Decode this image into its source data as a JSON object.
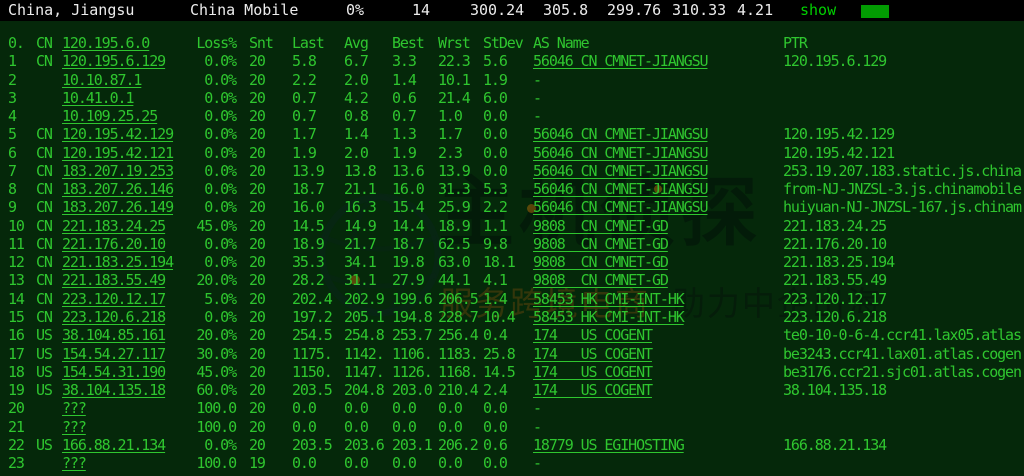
{
  "topbar": {
    "location": "China, Jiangsu",
    "isp": "China Mobile",
    "loss_pct": "0%",
    "hop_count": "14",
    "stats": [
      "300.24",
      "305.8",
      "299.76",
      "310.33",
      "4.21"
    ],
    "show_label": "show",
    "progress_color": "#029b02",
    "bar_bg": "#000000",
    "text_color": "#ececec",
    "show_color": "#00d000"
  },
  "terminal": {
    "bg_color": "#05280a",
    "text_color": "#2fc62f",
    "rows": [
      {
        "hop": "0.",
        "cc": "CN",
        "ip": "120.195.6.0",
        "loss": "Loss%",
        "snt": "Snt",
        "last": "Last",
        "avg": "Avg",
        "best": "Best",
        "wrst": "Wrst",
        "stdev": "StDev",
        "as_name": "AS Name",
        "ptr": "PTR",
        "header": true
      },
      {
        "hop": "1",
        "cc": "CN",
        "ip": "120.195.6.129",
        "loss": "0.0%",
        "snt": "20",
        "last": "5.8",
        "avg": "6.7",
        "best": "3.3",
        "wrst": "22.3",
        "stdev": "5.6",
        "as_name": "56046 CN CMNET-JIANGSU",
        "ptr": "120.195.6.129"
      },
      {
        "hop": "2",
        "cc": "",
        "ip": "10.10.87.1",
        "loss": "0.0%",
        "snt": "20",
        "last": "2.2",
        "avg": "2.0",
        "best": "1.4",
        "wrst": "10.1",
        "stdev": "1.9",
        "as_name": "-",
        "ptr": ""
      },
      {
        "hop": "3",
        "cc": "",
        "ip": "10.41.0.1",
        "loss": "0.0%",
        "snt": "20",
        "last": "0.7",
        "avg": "4.2",
        "best": "0.6",
        "wrst": "21.4",
        "stdev": "6.0",
        "as_name": "-",
        "ptr": ""
      },
      {
        "hop": "4",
        "cc": "",
        "ip": "10.109.25.25",
        "loss": "0.0%",
        "snt": "20",
        "last": "0.7",
        "avg": "0.8",
        "best": "0.7",
        "wrst": "1.0",
        "stdev": "0.0",
        "as_name": "-",
        "ptr": ""
      },
      {
        "hop": "5",
        "cc": "CN",
        "ip": "120.195.42.129",
        "loss": "0.0%",
        "snt": "20",
        "last": "1.7",
        "avg": "1.4",
        "best": "1.3",
        "wrst": "1.7",
        "stdev": "0.0",
        "as_name": "56046 CN CMNET-JIANGSU",
        "ptr": "120.195.42.129"
      },
      {
        "hop": "6",
        "cc": "CN",
        "ip": "120.195.42.121",
        "loss": "0.0%",
        "snt": "20",
        "last": "1.9",
        "avg": "2.0",
        "best": "1.9",
        "wrst": "2.3",
        "stdev": "0.0",
        "as_name": "56046 CN CMNET-JIANGSU",
        "ptr": "120.195.42.121"
      },
      {
        "hop": "7",
        "cc": "CN",
        "ip": "183.207.19.253",
        "loss": "0.0%",
        "snt": "20",
        "last": "13.9",
        "avg": "13.8",
        "best": "13.6",
        "wrst": "13.9",
        "stdev": "0.0",
        "as_name": "56046 CN CMNET-JIANGSU",
        "ptr": "253.19.207.183.static.js.china"
      },
      {
        "hop": "8",
        "cc": "CN",
        "ip": "183.207.26.146",
        "loss": "0.0%",
        "snt": "20",
        "last": "18.7",
        "avg": "21.1",
        "best": "16.0",
        "wrst": "31.3",
        "stdev": "5.3",
        "as_name": "56046 CN CMNET-JIANGSU",
        "ptr": "from-NJ-JNZSL-3.js.chinamobile"
      },
      {
        "hop": "9",
        "cc": "CN",
        "ip": "183.207.26.149",
        "loss": "0.0%",
        "snt": "20",
        "last": "16.0",
        "avg": "16.3",
        "best": "15.4",
        "wrst": "25.9",
        "stdev": "2.2",
        "as_name": "56046 CN CMNET-JIANGSU",
        "ptr": "huiyuan-NJ-JNZSL-167.js.chinam"
      },
      {
        "hop": "10",
        "cc": "CN",
        "ip": "221.183.24.25",
        "loss": "45.0%",
        "snt": "20",
        "last": "14.5",
        "avg": "14.9",
        "best": "14.4",
        "wrst": "18.9",
        "stdev": "1.1",
        "as_name": "9808  CN CMNET-GD",
        "ptr": "221.183.24.25"
      },
      {
        "hop": "11",
        "cc": "CN",
        "ip": "221.176.20.10",
        "loss": "0.0%",
        "snt": "20",
        "last": "18.9",
        "avg": "21.7",
        "best": "18.7",
        "wrst": "62.5",
        "stdev": "9.8",
        "as_name": "9808  CN CMNET-GD",
        "ptr": "221.176.20.10"
      },
      {
        "hop": "12",
        "cc": "CN",
        "ip": "221.183.25.194",
        "loss": "0.0%",
        "snt": "20",
        "last": "35.3",
        "avg": "34.1",
        "best": "19.8",
        "wrst": "63.0",
        "stdev": "18.1",
        "as_name": "9808  CN CMNET-GD",
        "ptr": "221.183.25.194"
      },
      {
        "hop": "13",
        "cc": "CN",
        "ip": "221.183.55.49",
        "loss": "20.0%",
        "snt": "20",
        "last": "28.2",
        "avg": "31.1",
        "best": "27.9",
        "wrst": "44.1",
        "stdev": "4.1",
        "as_name": "9808  CN CMNET-GD",
        "ptr": "221.183.55.49"
      },
      {
        "hop": "14",
        "cc": "CN",
        "ip": "223.120.12.17",
        "loss": "5.0%",
        "snt": "20",
        "last": "202.4",
        "avg": "202.9",
        "best": "199.6",
        "wrst": "206.5",
        "stdev": "1.4",
        "as_name": "58453 HK CMI-INT-HK",
        "ptr": "223.120.12.17"
      },
      {
        "hop": "15",
        "cc": "CN",
        "ip": "223.120.6.218",
        "loss": "0.0%",
        "snt": "20",
        "last": "197.2",
        "avg": "205.1",
        "best": "194.8",
        "wrst": "228.7",
        "stdev": "10.4",
        "as_name": "58453 HK CMI-INT-HK",
        "ptr": "223.120.6.218"
      },
      {
        "hop": "16",
        "cc": "US",
        "ip": "38.104.85.161",
        "loss": "20.0%",
        "snt": "20",
        "last": "254.5",
        "avg": "254.8",
        "best": "253.7",
        "wrst": "256.4",
        "stdev": "0.4",
        "as_name": "174   US COGENT",
        "ptr": "te0-10-0-6-4.ccr41.lax05.atlas"
      },
      {
        "hop": "17",
        "cc": "US",
        "ip": "154.54.27.117",
        "loss": "30.0%",
        "snt": "20",
        "last": "1175.",
        "avg": "1142.",
        "best": "1106.",
        "wrst": "1183.",
        "stdev": "25.8",
        "as_name": "174   US COGENT",
        "ptr": "be3243.ccr41.lax01.atlas.cogen"
      },
      {
        "hop": "18",
        "cc": "US",
        "ip": "154.54.31.190",
        "loss": "45.0%",
        "snt": "20",
        "last": "1150.",
        "avg": "1147.",
        "best": "1126.",
        "wrst": "1168.",
        "stdev": "14.5",
        "as_name": "174   US COGENT",
        "ptr": "be3176.ccr21.sjc01.atlas.cogen"
      },
      {
        "hop": "19",
        "cc": "US",
        "ip": "38.104.135.18",
        "loss": "60.0%",
        "snt": "20",
        "last": "203.5",
        "avg": "204.8",
        "best": "203.0",
        "wrst": "210.4",
        "stdev": "2.4",
        "as_name": "174   US COGENT",
        "ptr": "38.104.135.18"
      },
      {
        "hop": "20",
        "cc": "",
        "ip": "???",
        "loss": "100.0",
        "snt": "20",
        "last": "0.0",
        "avg": "0.0",
        "best": "0.0",
        "wrst": "0.0",
        "stdev": "0.0",
        "as_name": "-",
        "ptr": ""
      },
      {
        "hop": "21",
        "cc": "",
        "ip": "???",
        "loss": "100.0",
        "snt": "20",
        "last": "0.0",
        "avg": "0.0",
        "best": "0.0",
        "wrst": "0.0",
        "stdev": "0.0",
        "as_name": "-",
        "ptr": ""
      },
      {
        "hop": "22",
        "cc": "US",
        "ip": "166.88.21.134",
        "loss": "0.0%",
        "snt": "20",
        "last": "203.5",
        "avg": "203.6",
        "best": "203.1",
        "wrst": "206.2",
        "stdev": "0.6",
        "as_name": "18779 US EGIHOSTING",
        "ptr": "166.88.21.134"
      },
      {
        "hop": "23",
        "cc": "",
        "ip": "???",
        "loss": "100.0",
        "snt": "19",
        "last": "0.0",
        "avg": "0.0",
        "best": "0.0",
        "wrst": "0.0",
        "stdev": "0.0",
        "as_name": "-",
        "ptr": ""
      }
    ]
  },
  "watermark": {
    "title": "主机侦探",
    "tagline_left": "服务跨境电商 ",
    "tagline_right": "助力中企出海",
    "globe_icon": "globe-icon"
  }
}
